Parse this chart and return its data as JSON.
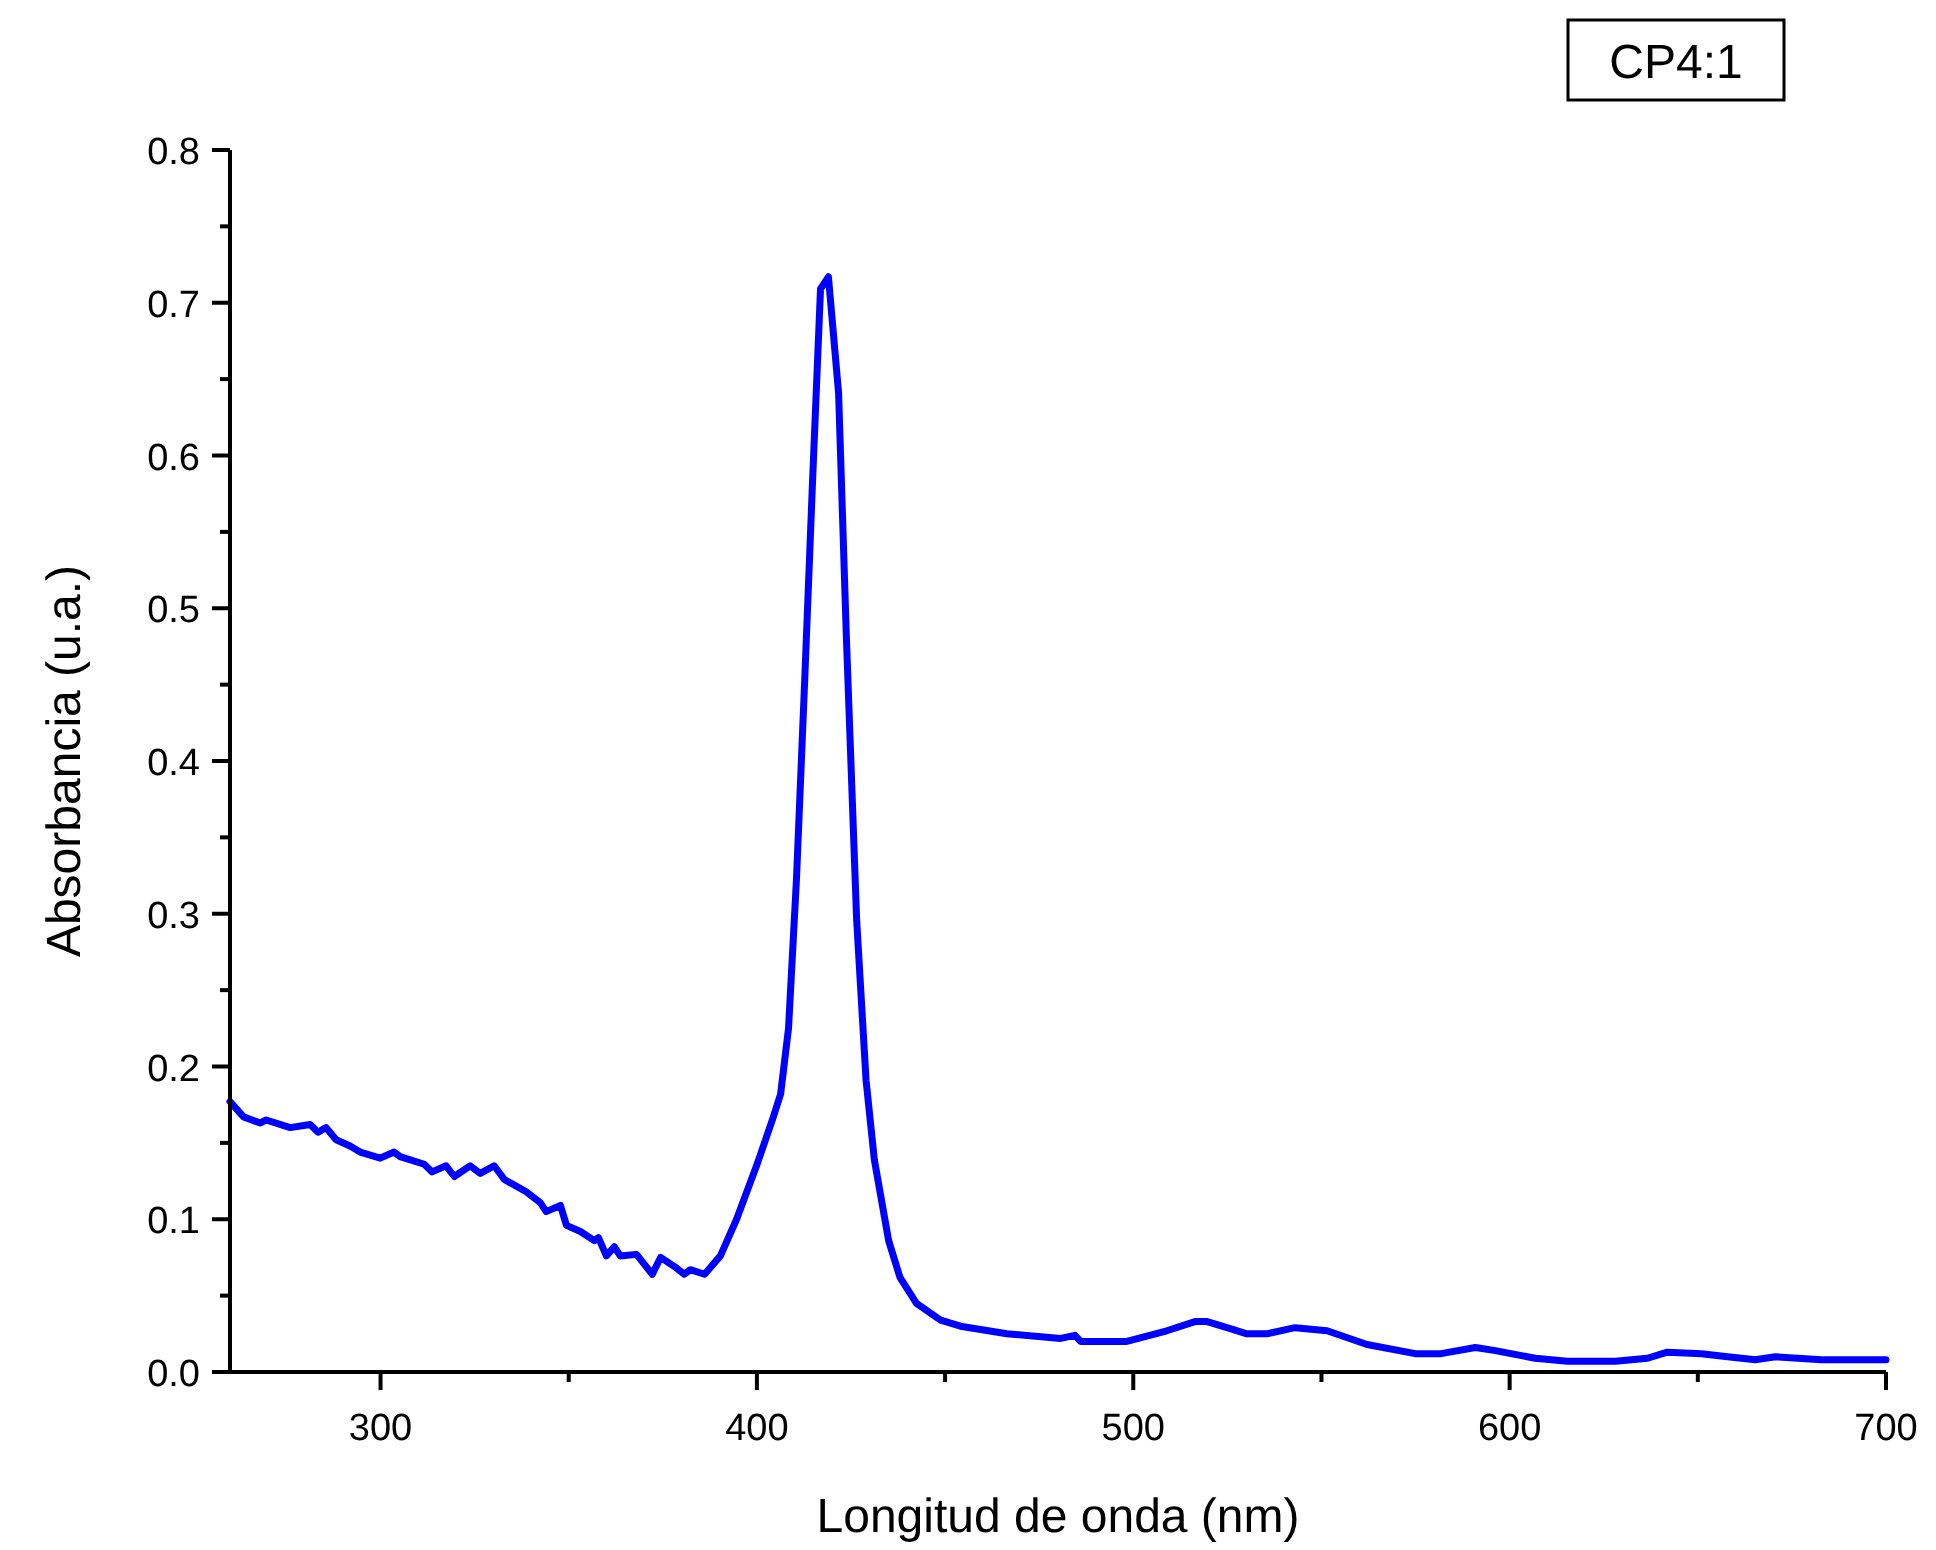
{
  "chart_data": {
    "type": "line",
    "xlabel": "Longitud de onda (nm)",
    "ylabel": "Absorbancia (u.a.)",
    "annotations": [
      "CP4:1"
    ],
    "xlim": [
      260,
      700
    ],
    "ylim": [
      0,
      0.8
    ],
    "xticks": [
      300,
      {
        "value": 350,
        "label": null
      },
      400,
      {
        "value": 450,
        "label": null
      },
      500,
      {
        "value": 550,
        "label": null
      },
      600,
      {
        "value": 650,
        "label": null
      },
      700
    ],
    "yticks": [
      {
        "value": 0,
        "label": "0.0"
      },
      {
        "value": 0.05,
        "label": null
      },
      {
        "value": 0.1,
        "label": "0.1"
      },
      {
        "value": 0.15,
        "label": null
      },
      {
        "value": 0.2,
        "label": "0.2"
      },
      {
        "value": 0.25,
        "label": null
      },
      {
        "value": 0.3,
        "label": "0.3"
      },
      {
        "value": 0.35,
        "label": null
      },
      {
        "value": 0.4,
        "label": "0.4"
      },
      {
        "value": 0.45,
        "label": null
      },
      {
        "value": 0.5,
        "label": "0.5"
      },
      {
        "value": 0.55,
        "label": null
      },
      {
        "value": 0.6,
        "label": "0.6"
      },
      {
        "value": 0.65,
        "label": null
      },
      {
        "value": 0.7,
        "label": "0.7"
      },
      {
        "value": 0.75,
        "label": null
      },
      {
        "value": 0.8,
        "label": "0.8"
      }
    ],
    "grid": false,
    "marker": "none",
    "line_style": "solid",
    "series": [
      {
        "color": "#0000ff",
        "x": [
          260,
          263.6,
          268,
          269.6,
          276,
          281.3,
          283.4,
          285.5,
          288.2,
          291.9,
          294.6,
          299.9,
          303.6,
          305.2,
          311.6,
          313.7,
          317.4,
          319.6,
          323.8,
          326.5,
          330.2,
          332.9,
          338.7,
          342.4,
          344,
          347.8,
          349.4,
          353.1,
          356.8,
          357.9,
          360,
          362.1,
          363.7,
          368,
          372.2,
          374.4,
          378.1,
          380.7,
          382.3,
          386.1,
          390.3,
          394.6,
          399.9,
          404.1,
          406.3,
          408.4,
          410.5,
          412.7,
          414.8,
          416.9,
          419,
          421.7,
          423.8,
          426.5,
          429,
          431.2,
          435,
          438,
          442.4,
          448.8,
          454.1,
          466.4,
          480.7,
          484.5,
          486,
          498.3,
          508.9,
          516.4,
          519.6,
          524.9,
          530.2,
          535.5,
          543,
          551.5,
          562.1,
          574.9,
          581.8,
          590.9,
          596.2,
          606.8,
          615.3,
          628.1,
          636.6,
          641.9,
          651,
          657.9,
          665.3,
          670.6,
          682.9,
          700
        ],
        "values": [
          0.177,
          0.167,
          0.163,
          0.165,
          0.16,
          0.162,
          0.157,
          0.16,
          0.152,
          0.148,
          0.144,
          0.14,
          0.144,
          0.141,
          0.136,
          0.131,
          0.135,
          0.128,
          0.135,
          0.13,
          0.135,
          0.126,
          0.118,
          0.111,
          0.105,
          0.109,
          0.096,
          0.092,
          0.086,
          0.088,
          0.076,
          0.082,
          0.076,
          0.077,
          0.064,
          0.075,
          0.069,
          0.064,
          0.067,
          0.064,
          0.076,
          0.1,
          0.135,
          0.165,
          0.182,
          0.225,
          0.322,
          0.453,
          0.584,
          0.709,
          0.717,
          0.641,
          0.479,
          0.296,
          0.191,
          0.139,
          0.086,
          0.062,
          0.045,
          0.034,
          0.03,
          0.025,
          0.022,
          0.024,
          0.02,
          0.02,
          0.027,
          0.033,
          0.033,
          0.029,
          0.025,
          0.025,
          0.029,
          0.027,
          0.018,
          0.012,
          0.012,
          0.016,
          0.014,
          0.009,
          0.007,
          0.007,
          0.009,
          0.013,
          0.012,
          0.01,
          0.008,
          0.01,
          0.008,
          0.008
        ]
      }
    ]
  }
}
